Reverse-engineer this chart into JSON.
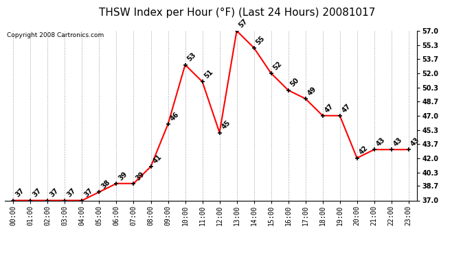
{
  "title": "THSW Index per Hour (°F) (Last 24 Hours) 20081017",
  "copyright": "Copyright 2008 Cartronics.com",
  "hours": [
    "00:00",
    "01:00",
    "02:00",
    "03:00",
    "04:00",
    "05:00",
    "06:00",
    "07:00",
    "08:00",
    "09:00",
    "10:00",
    "11:00",
    "12:00",
    "13:00",
    "14:00",
    "15:00",
    "16:00",
    "17:00",
    "18:00",
    "19:00",
    "20:00",
    "21:00",
    "22:00",
    "23:00"
  ],
  "values": [
    37,
    37,
    37,
    37,
    37,
    38,
    39,
    39,
    41,
    46,
    53,
    51,
    45,
    57,
    55,
    52,
    50,
    49,
    47,
    47,
    42,
    43,
    43,
    43
  ],
  "ylim_min": 37.0,
  "ylim_max": 57.0,
  "yticks": [
    37.0,
    38.7,
    40.3,
    42.0,
    43.7,
    45.3,
    47.0,
    48.7,
    50.3,
    52.0,
    53.7,
    55.3,
    57.0
  ],
  "line_color": "red",
  "marker_color": "red",
  "marker_edge_color": "black",
  "bg_color": "white",
  "grid_color": "#b0b0b0",
  "title_fontsize": 11,
  "copyright_fontsize": 6.5,
  "label_fontsize": 7,
  "tick_fontsize": 7
}
